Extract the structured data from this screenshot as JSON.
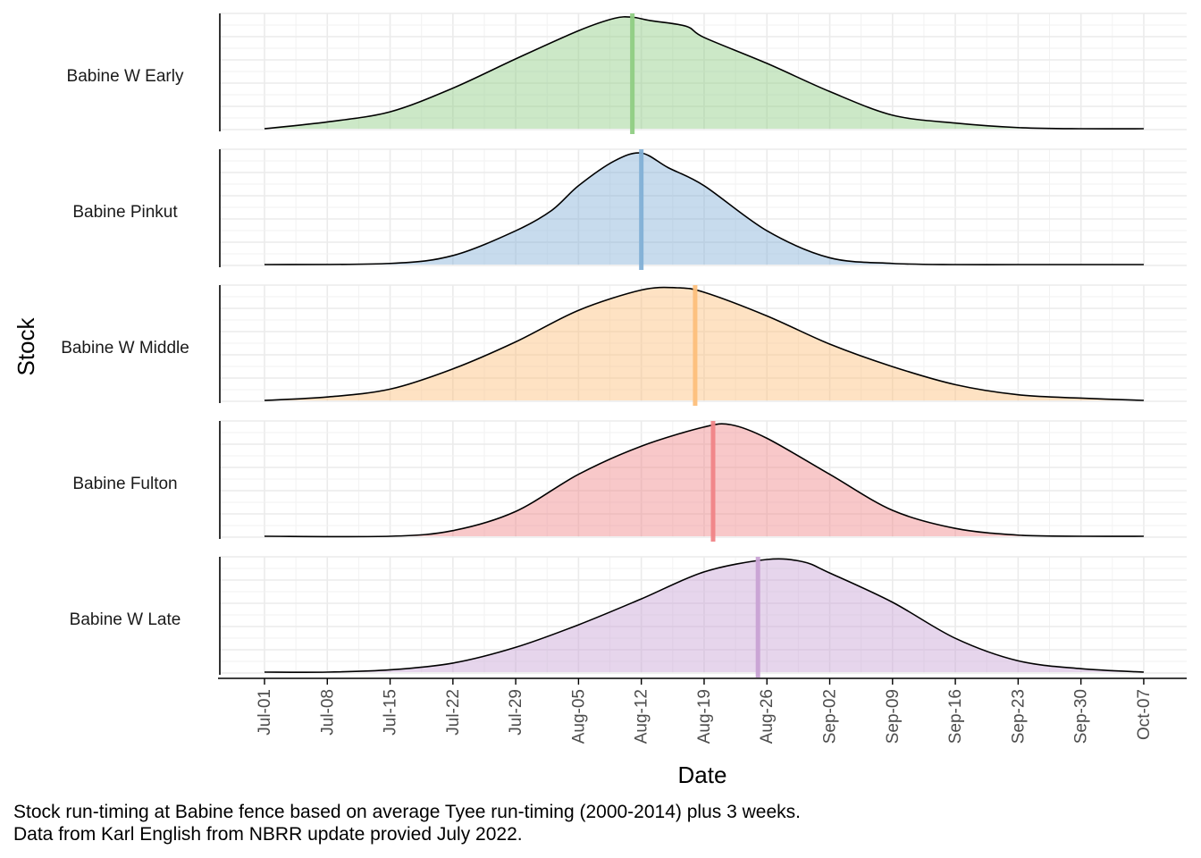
{
  "chart_data": {
    "type": "area",
    "xlabel": "Date",
    "ylabel": "Stock",
    "x_ticks": [
      "Jul-01",
      "Jul-08",
      "Jul-15",
      "Jul-22",
      "Jul-29",
      "Aug-05",
      "Aug-12",
      "Aug-19",
      "Aug-26",
      "Sep-02",
      "Sep-09",
      "Sep-16",
      "Sep-23",
      "Sep-30",
      "Oct-07"
    ],
    "xlim": [
      "Jul-01",
      "Oct-07"
    ],
    "grid": true,
    "series": [
      {
        "name": "Babine W Early",
        "color": "#8fcd83",
        "median": "Aug-11",
        "x": [
          "Jul-01",
          "Jul-08",
          "Jul-15",
          "Jul-22",
          "Jul-29",
          "Aug-05",
          "Aug-09",
          "Aug-11",
          "Aug-13",
          "Aug-17",
          "Aug-19",
          "Aug-26",
          "Sep-02",
          "Sep-09",
          "Sep-16",
          "Sep-23",
          "Sep-30",
          "Oct-07"
        ],
        "values": [
          0.0,
          0.06,
          0.15,
          0.36,
          0.62,
          0.87,
          0.98,
          0.99,
          0.96,
          0.91,
          0.81,
          0.58,
          0.33,
          0.12,
          0.05,
          0.01,
          0.0,
          0.0
        ]
      },
      {
        "name": "Babine Pinkut",
        "color": "#82b0d6",
        "median": "Aug-12",
        "x": [
          "Jul-01",
          "Jul-15",
          "Jul-22",
          "Jul-29",
          "Aug-02",
          "Aug-05",
          "Aug-09",
          "Aug-12",
          "Aug-15",
          "Aug-19",
          "Aug-26",
          "Sep-02",
          "Sep-09",
          "Sep-16",
          "Sep-23",
          "Sep-30",
          "Oct-07"
        ],
        "values": [
          0.0,
          0.01,
          0.08,
          0.3,
          0.48,
          0.7,
          0.92,
          0.99,
          0.86,
          0.7,
          0.3,
          0.06,
          0.01,
          0.0,
          0.0,
          0.0,
          0.0
        ]
      },
      {
        "name": "Babine W Middle",
        "color": "#fdbf7b",
        "median": "Aug-18",
        "x": [
          "Jul-01",
          "Jul-08",
          "Jul-15",
          "Jul-22",
          "Jul-29",
          "Aug-05",
          "Aug-12",
          "Aug-16",
          "Aug-19",
          "Aug-26",
          "Sep-02",
          "Sep-09",
          "Sep-16",
          "Sep-23",
          "Sep-30",
          "Oct-07"
        ],
        "values": [
          0.0,
          0.03,
          0.1,
          0.28,
          0.52,
          0.8,
          0.98,
          1.0,
          0.96,
          0.75,
          0.5,
          0.3,
          0.14,
          0.05,
          0.02,
          0.0
        ]
      },
      {
        "name": "Babine Fulton",
        "color": "#f08487",
        "median": "Aug-20",
        "x": [
          "Jul-01",
          "Jul-15",
          "Jul-22",
          "Jul-29",
          "Aug-05",
          "Aug-12",
          "Aug-19",
          "Aug-22",
          "Aug-26",
          "Sep-02",
          "Sep-09",
          "Sep-16",
          "Sep-23",
          "Sep-30",
          "Oct-07"
        ],
        "values": [
          0.0,
          0.0,
          0.05,
          0.22,
          0.55,
          0.8,
          0.97,
          0.99,
          0.87,
          0.55,
          0.23,
          0.07,
          0.01,
          0.0,
          0.0
        ]
      },
      {
        "name": "Babine W Late",
        "color": "#c8a2d4",
        "median": "Aug-25",
        "x": [
          "Jul-01",
          "Jul-08",
          "Jul-15",
          "Jul-22",
          "Jul-29",
          "Aug-05",
          "Aug-12",
          "Aug-19",
          "Aug-26",
          "Aug-30",
          "Sep-02",
          "Sep-09",
          "Sep-16",
          "Sep-23",
          "Sep-30",
          "Oct-07"
        ],
        "values": [
          0.0,
          0.0,
          0.02,
          0.08,
          0.22,
          0.42,
          0.65,
          0.89,
          1.0,
          0.98,
          0.88,
          0.62,
          0.3,
          0.1,
          0.03,
          0.0
        ]
      }
    ]
  },
  "caption": {
    "line1": "Stock run-timing at Babine fence based on average Tyee run-timing (2000-2014) plus 3 weeks.",
    "line2": "Data from Karl English from NBRR update provied July 2022."
  }
}
